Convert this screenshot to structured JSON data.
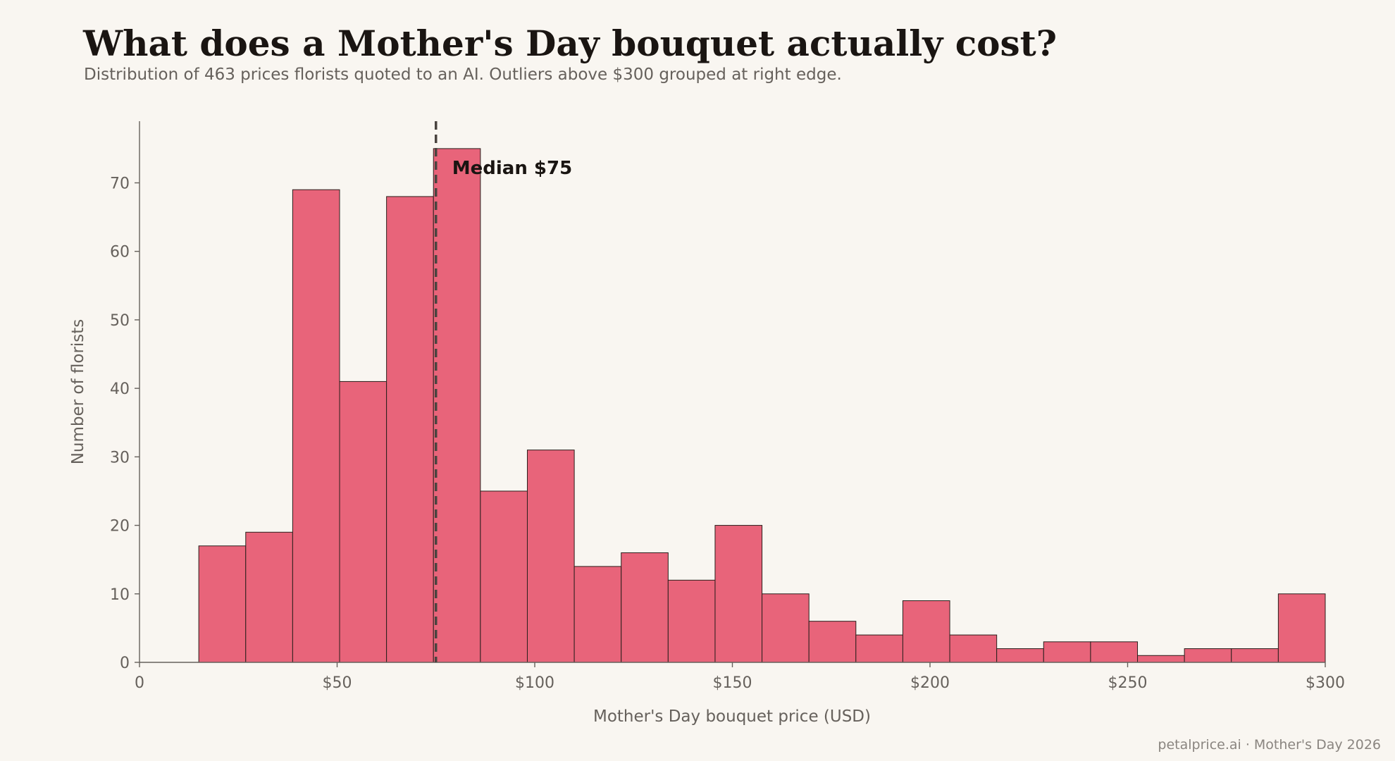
{
  "title": "What does a Mother's Day bouquet actually cost?",
  "subtitle": "Distribution of 463 prices florists quoted to an AI. Outliers above $300 grouped at right edge.",
  "footer": "petalprice.ai · Mother's Day 2026",
  "chart_data": {
    "type": "bar",
    "subtype": "histogram",
    "xlabel": "Mother's Day bouquet price (USD)",
    "ylabel": "Number of florists",
    "xlim": [
      0,
      300
    ],
    "ylim": [
      0,
      79
    ],
    "x_ticks": [
      0,
      50,
      100,
      150,
      200,
      250,
      300
    ],
    "x_tick_labels": [
      "0",
      "$50",
      "$100",
      "$150",
      "$200",
      "$250",
      "$300"
    ],
    "y_ticks": [
      0,
      10,
      20,
      30,
      40,
      50,
      60,
      70
    ],
    "y_tick_labels": [
      "0",
      "10",
      "20",
      "30",
      "40",
      "50",
      "60",
      "70"
    ],
    "bins": [
      {
        "x0": 15.0,
        "x1": 26.875,
        "count": 17
      },
      {
        "x0": 26.875,
        "x1": 38.75,
        "count": 19
      },
      {
        "x0": 38.75,
        "x1": 50.625,
        "count": 69
      },
      {
        "x0": 50.625,
        "x1": 62.5,
        "count": 41
      },
      {
        "x0": 62.5,
        "x1": 74.375,
        "count": 68
      },
      {
        "x0": 74.375,
        "x1": 86.25,
        "count": 75
      },
      {
        "x0": 86.25,
        "x1": 98.125,
        "count": 25
      },
      {
        "x0": 98.125,
        "x1": 110.0,
        "count": 31
      },
      {
        "x0": 110.0,
        "x1": 121.875,
        "count": 14
      },
      {
        "x0": 121.875,
        "x1": 133.75,
        "count": 16
      },
      {
        "x0": 133.75,
        "x1": 145.625,
        "count": 12
      },
      {
        "x0": 145.625,
        "x1": 157.5,
        "count": 20
      },
      {
        "x0": 157.5,
        "x1": 169.375,
        "count": 10
      },
      {
        "x0": 169.375,
        "x1": 181.25,
        "count": 6
      },
      {
        "x0": 181.25,
        "x1": 193.125,
        "count": 4
      },
      {
        "x0": 193.125,
        "x1": 205.0,
        "count": 9
      },
      {
        "x0": 205.0,
        "x1": 216.875,
        "count": 4
      },
      {
        "x0": 216.875,
        "x1": 228.75,
        "count": 2
      },
      {
        "x0": 228.75,
        "x1": 240.625,
        "count": 3
      },
      {
        "x0": 240.625,
        "x1": 252.5,
        "count": 3
      },
      {
        "x0": 252.5,
        "x1": 264.375,
        "count": 1
      },
      {
        "x0": 264.375,
        "x1": 276.25,
        "count": 2
      },
      {
        "x0": 276.25,
        "x1": 288.125,
        "count": 2
      },
      {
        "x0": 288.125,
        "x1": 300.0,
        "count": 10
      }
    ],
    "median": 75,
    "median_label": "Median $75",
    "grid": false,
    "bar_color": "#e8647a",
    "bar_edge_color": "#2a1f1c",
    "median_line_color": "#4a4440",
    "axis_color": "#66615c",
    "text_color": "#1a1512"
  }
}
